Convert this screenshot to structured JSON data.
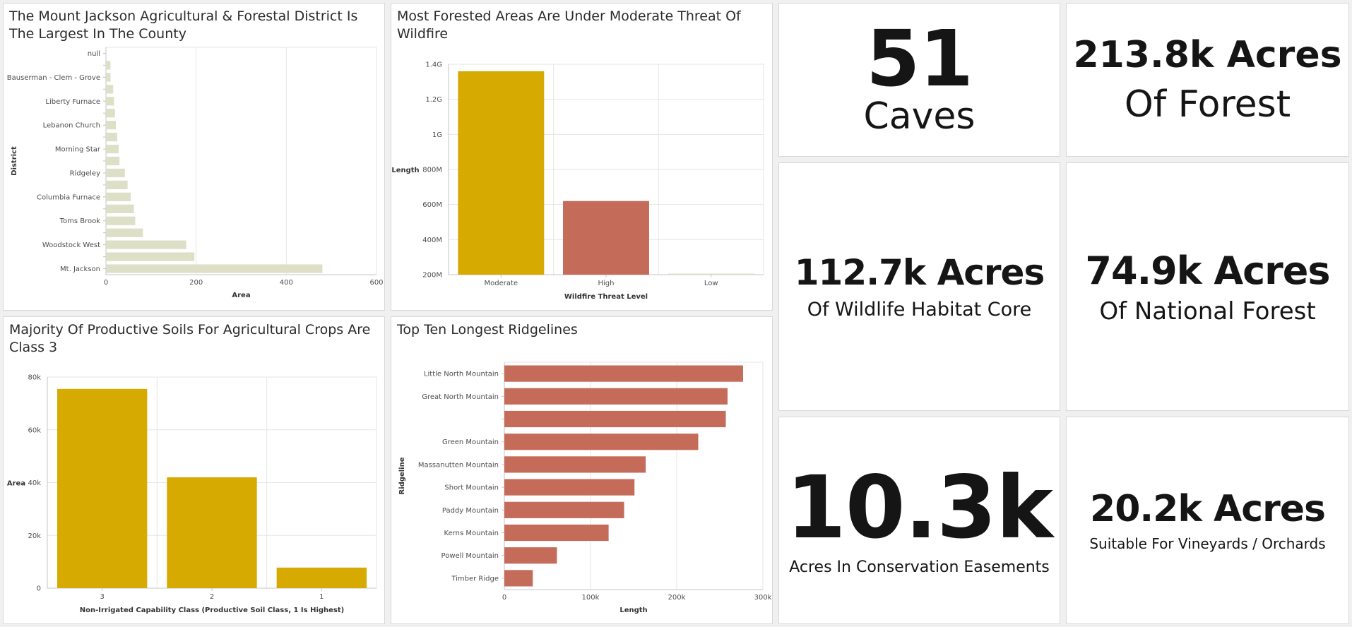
{
  "chart_data": [
    {
      "id": "districts",
      "type": "bar",
      "orientation": "horizontal",
      "title": "The Mount Jackson Agricultural & Forestal District Is The Largest In The County",
      "xlabel": "Area",
      "ylabel": "District",
      "xlim": [
        0,
        600
      ],
      "xticks": [
        "0",
        "200",
        "400",
        "600"
      ],
      "categories": [
        "null",
        "",
        "Bauserman - Clem - Grove",
        "",
        "Liberty Furnace",
        "",
        "Lebanon Church",
        "",
        "Morning Star",
        "",
        "Ridgeley",
        "",
        "Columbia Furnace",
        "",
        "Toms Brook",
        "",
        "Woodstock West",
        "",
        "Mt. Jackson"
      ],
      "values": [
        0,
        10,
        10,
        16,
        18,
        20,
        22,
        25,
        28,
        30,
        42,
        48,
        55,
        62,
        65,
        82,
        178,
        196,
        480
      ],
      "color": "#dde0c6"
    },
    {
      "id": "wildfire",
      "type": "bar",
      "title": "Most Forested Areas Are Under Moderate Threat Of Wildfire",
      "xlabel": "Wildfire Threat Level",
      "ylabel": "Length",
      "ylim": [
        200000000,
        1400000000
      ],
      "yticks": [
        "200M",
        "400M",
        "600M",
        "800M",
        "1G",
        "1.2G",
        "1.4G"
      ],
      "categories": [
        "Moderate",
        "High",
        "Low"
      ],
      "values": [
        1360000000,
        620000000,
        205000000
      ],
      "colors": [
        "#d6aa00",
        "#c56b5a",
        "#dde0c6"
      ]
    },
    {
      "id": "soils",
      "type": "bar",
      "title": "Majority Of Productive Soils For Agricultural Crops Are Class 3",
      "xlabel": "Non-Irrigated Capability Class (Productive Soil Class, 1 Is Highest)",
      "ylabel": "Area",
      "ylim": [
        0,
        80000
      ],
      "yticks": [
        "0",
        "20k",
        "40k",
        "60k",
        "80k"
      ],
      "categories": [
        "3",
        "2",
        "1"
      ],
      "values": [
        75500,
        42000,
        7800
      ],
      "color": "#d6aa00"
    },
    {
      "id": "ridgelines",
      "type": "bar",
      "orientation": "horizontal",
      "title": "Top Ten Longest Ridgelines",
      "xlabel": "Length",
      "ylabel": "Ridgeline",
      "xlim": [
        0,
        300000
      ],
      "xticks": [
        "0",
        "100k",
        "200k",
        "300k"
      ],
      "categories": [
        "Little North Mountain",
        "Great North Mountain",
        "",
        "Green Mountain",
        "Massanutten Mountain",
        "Short Mountain",
        "Paddy Mountain",
        "Kerns Mountain",
        "Powell Mountain",
        "Timber Ridge"
      ],
      "values": [
        277000,
        259000,
        257000,
        225000,
        164000,
        151000,
        139000,
        121000,
        61000,
        33000
      ],
      "color": "#c56b5a"
    }
  ],
  "indicators": {
    "caves": {
      "value": "51",
      "label": "Caves"
    },
    "forest": {
      "line1": "213.8k Acres",
      "line2": "Of Forest"
    },
    "habitat": {
      "value": "112.7k Acres",
      "label": "Of Wildlife Habitat Core"
    },
    "national": {
      "value": "74.9k Acres",
      "label": "Of National Forest"
    },
    "easements": {
      "value": "10.3k",
      "label": "Acres In Conservation Easements"
    },
    "vineyards": {
      "value": "20.2k Acres",
      "label": "Suitable For Vineyards / Orchards"
    }
  }
}
